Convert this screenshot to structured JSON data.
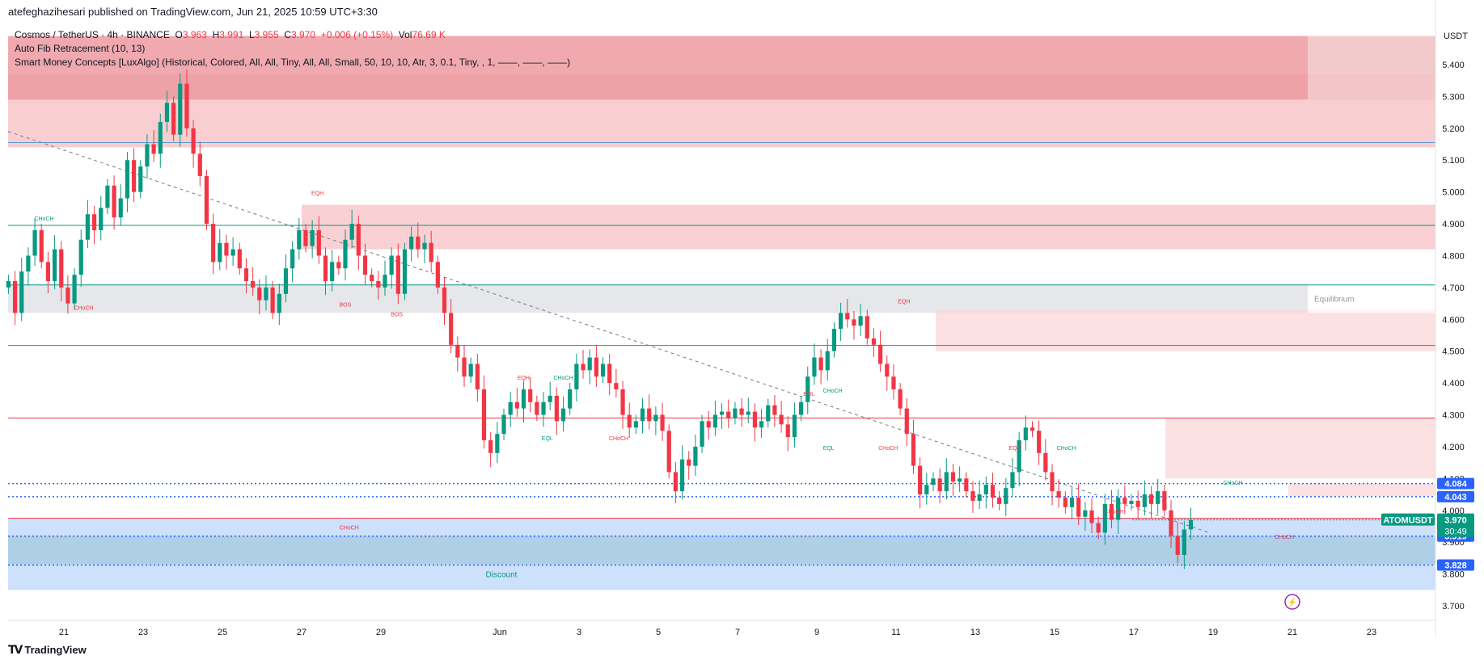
{
  "header": {
    "publisher": "atefeghazihesari published on TradingView.com, Jun 21, 2025 10:59 UTC+3:30"
  },
  "legend": {
    "symbol": "Cosmos / TetherUS · 4h · BINANCE",
    "ohlc_open_label": "O",
    "ohlc_open": "3.963",
    "ohlc_high_label": "H",
    "ohlc_high": "3.991",
    "ohlc_low_label": "L",
    "ohlc_low": "3.955",
    "ohlc_close_label": "C",
    "ohlc_close": "3.970",
    "change": "+0.006 (+0.15%)",
    "vol_label": "Vol",
    "vol": "76.69 K",
    "indicator1": "Auto Fib Retracement (10, 13)",
    "indicator2": "Smart Money Concepts [LuxAlgo] (Historical, Colored, All, All, Tiny, All, All, Small, 50, 10, 10, Atr, 3, 0.1, Tiny, , 1, ——, ——, ——)"
  },
  "colors": {
    "up": "#089981",
    "down": "#f23645",
    "premium_zone": "#f7c6c9",
    "equilibrium_zone": "#e0e3e7",
    "discount_zone": "#bcd6fb",
    "fib_line_green": "#089981",
    "fib_line_red": "#f23645",
    "badge_blue": "#2962ff",
    "badge_green": "#089981"
  },
  "chart_data": {
    "type": "candlestick",
    "currency": "USDT",
    "ylim": [
      3.65,
      5.5
    ],
    "y_ticks": [
      "5.400",
      "5.300",
      "5.200",
      "5.100",
      "5.000",
      "4.900",
      "4.800",
      "4.700",
      "4.600",
      "4.500",
      "4.400",
      "4.300",
      "4.200",
      "4.100",
      "4.000",
      "3.900",
      "3.800",
      "3.700"
    ],
    "x_ticks": [
      "21",
      "23",
      "25",
      "27",
      "29",
      "Jun",
      "3",
      "5",
      "7",
      "9",
      "11",
      "13",
      "15",
      "17",
      "19",
      "21",
      "23"
    ],
    "x_tick_days": [
      -11,
      -9,
      -7,
      -5,
      -3,
      0,
      2,
      4,
      6,
      8,
      10,
      12,
      14,
      16,
      18,
      20,
      22
    ],
    "candles_start_day": -12.4,
    "candle_interval_days": 0.1667,
    "closes": [
      4.72,
      4.62,
      4.75,
      4.8,
      4.88,
      4.78,
      4.72,
      4.82,
      4.7,
      4.65,
      4.74,
      4.85,
      4.93,
      4.88,
      4.95,
      5.02,
      4.92,
      4.98,
      5.1,
      5.0,
      5.08,
      5.15,
      5.12,
      5.22,
      5.28,
      5.18,
      5.34,
      5.2,
      5.12,
      5.05,
      4.9,
      4.78,
      4.84,
      4.8,
      4.82,
      4.76,
      4.72,
      4.7,
      4.66,
      4.7,
      4.62,
      4.68,
      4.76,
      4.82,
      4.88,
      4.83,
      4.88,
      4.8,
      4.72,
      4.78,
      4.76,
      4.85,
      4.9,
      4.8,
      4.74,
      4.72,
      4.7,
      4.74,
      4.8,
      4.68,
      4.82,
      4.86,
      4.82,
      4.84,
      4.78,
      4.7,
      4.62,
      4.52,
      4.48,
      4.42,
      4.46,
      4.38,
      4.22,
      4.18,
      4.24,
      4.3,
      4.34,
      4.32,
      4.38,
      4.34,
      4.3,
      4.34,
      4.36,
      4.28,
      4.32,
      4.38,
      4.46,
      4.44,
      4.48,
      4.42,
      4.46,
      4.4,
      4.38,
      4.3,
      4.26,
      4.28,
      4.32,
      4.28,
      4.3,
      4.25,
      4.12,
      4.06,
      4.16,
      4.14,
      4.2,
      4.28,
      4.26,
      4.3,
      4.31,
      4.29,
      4.32,
      4.3,
      4.31,
      4.26,
      4.28,
      4.33,
      4.3,
      4.27,
      4.23,
      4.3,
      4.34,
      4.42,
      4.48,
      4.44,
      4.5,
      4.57,
      4.62,
      4.6,
      4.58,
      4.61,
      4.54,
      4.52,
      4.46,
      4.42,
      4.38,
      4.32,
      4.24,
      4.14,
      4.05,
      4.08,
      4.1,
      4.06,
      4.12,
      4.09,
      4.1,
      4.06,
      4.03,
      4.05,
      4.08,
      4.04,
      4.02,
      4.07,
      4.12,
      4.22,
      4.26,
      4.25,
      4.18,
      4.12,
      4.06,
      4.04,
      4.01,
      4.04,
      3.98,
      4.0,
      3.96,
      3.93,
      4.02,
      3.97,
      4.04,
      4.02,
      4.03,
      4.01,
      4.05,
      4.02,
      4.06,
      4.0,
      3.92,
      3.86,
      3.94,
      3.97
    ],
    "fib_levels": [
      {
        "value": 5.155,
        "color": "#5b9bd5"
      },
      {
        "value": 4.895,
        "color": "#089981"
      },
      {
        "value": 4.708,
        "color": "#089981"
      },
      {
        "value": 4.518,
        "color": "#089981"
      },
      {
        "value": 4.29,
        "color": "#f23645"
      },
      {
        "value": 3.975,
        "color": "#f23645"
      }
    ],
    "zones": [
      {
        "name": "premium",
        "from": 5.14,
        "to": 5.37,
        "color": "#f7c6c9",
        "label": ""
      },
      {
        "name": "premium-top",
        "from": 5.29,
        "to": 5.49,
        "color": "#ec9aa1",
        "label": ""
      },
      {
        "name": "equilibrium",
        "from": 4.62,
        "to": 4.71,
        "color": "#e0e3e7",
        "label": "Equilibrium"
      },
      {
        "name": "discount",
        "from": 3.75,
        "to": 3.975,
        "color": "#c4dbfb",
        "label": "Discount"
      },
      {
        "name": "discount-inner",
        "from": 3.83,
        "to": 3.92,
        "color": "#a9cbe2",
        "label": ""
      }
    ],
    "order_blocks": [
      {
        "from": 4.82,
        "to": 4.96,
        "day_from": -5.0,
        "color": "#f7c6c9"
      },
      {
        "from": 4.5,
        "to": 4.63,
        "day_from": 11.0,
        "color": "#fbd9db"
      },
      {
        "from": 4.1,
        "to": 4.29,
        "day_from": 16.8,
        "color": "#fbd9db"
      },
      {
        "from": 4.045,
        "to": 4.085,
        "day_from": 19.9,
        "color": "#fbd9db"
      }
    ],
    "dotted_levels": [
      {
        "value": 4.084,
        "label": "4.084"
      },
      {
        "value": 4.043,
        "label": "4.043"
      },
      {
        "value": 3.919,
        "label": "3.919"
      },
      {
        "value": 3.828,
        "label": "3.828"
      }
    ],
    "price_badge": {
      "label": "ATOMUSDT",
      "value": "3.970",
      "countdown": "30:49"
    },
    "smc_labels": [
      {
        "text": "CHoCH",
        "day": -11.5,
        "y": 4.91,
        "color": "#089981"
      },
      {
        "text": "CHoCH",
        "day": -10.5,
        "y": 4.63,
        "color": "#f23645"
      },
      {
        "text": "EQH",
        "day": -4.6,
        "y": 4.99,
        "color": "#f23645"
      },
      {
        "text": "BOS",
        "day": -3.9,
        "y": 4.64,
        "color": "#f23645"
      },
      {
        "text": "BOS",
        "day": -2.6,
        "y": 4.61,
        "color": "#f23645"
      },
      {
        "text": "EQH",
        "day": 0.6,
        "y": 4.41,
        "color": "#f23645"
      },
      {
        "text": "CHoCH",
        "day": 1.6,
        "y": 4.41,
        "color": "#089981"
      },
      {
        "text": "EQL",
        "day": 1.2,
        "y": 4.22,
        "color": "#089981"
      },
      {
        "text": "CHoCH",
        "day": 3.0,
        "y": 4.22,
        "color": "#f23645"
      },
      {
        "text": "EQL",
        "day": 7.8,
        "y": 4.36,
        "color": "#f23645"
      },
      {
        "text": "CHoCH",
        "day": 8.4,
        "y": 4.37,
        "color": "#089981"
      },
      {
        "text": "EQL",
        "day": 8.3,
        "y": 4.19,
        "color": "#089981"
      },
      {
        "text": "CHoCH",
        "day": 9.8,
        "y": 4.19,
        "color": "#f23645"
      },
      {
        "text": "EQH",
        "day": 10.2,
        "y": 4.65,
        "color": "#f23645"
      },
      {
        "text": "EQH",
        "day": 13.0,
        "y": 4.19,
        "color": "#f23645"
      },
      {
        "text": "CHoCH",
        "day": 14.3,
        "y": 4.19,
        "color": "#089981"
      },
      {
        "text": "CHoCH",
        "day": 15.5,
        "y": 3.99,
        "color": "#f23645"
      },
      {
        "text": "CHoCH",
        "day": 18.5,
        "y": 4.08,
        "color": "#089981"
      },
      {
        "text": "CHoCH",
        "day": 19.8,
        "y": 3.91,
        "color": "#f23645"
      },
      {
        "text": "CHoCH",
        "day": -3.8,
        "y": 3.94,
        "color": "#f23645"
      }
    ]
  },
  "footer": {
    "brand": "TradingView"
  }
}
